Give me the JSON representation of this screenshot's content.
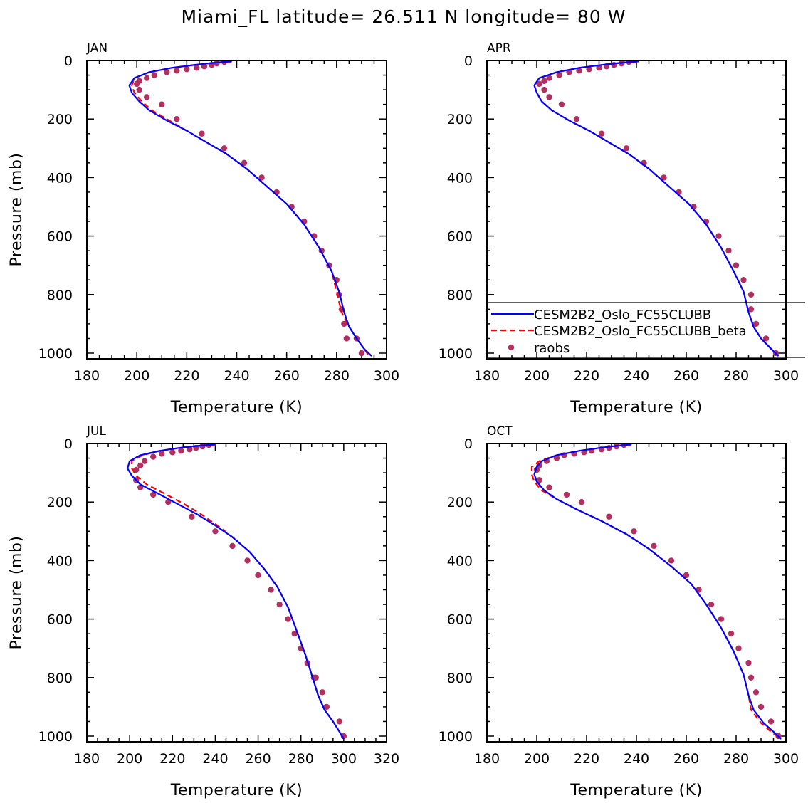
{
  "figure_title": "Miami_FL  latitude= 26.511 N longitude= 80 W",
  "colors": {
    "model": "#0000ff",
    "model_beta": "#ff0000",
    "raobs": "#b03060",
    "axis": "#000000"
  },
  "legend": {
    "entries": [
      {
        "label": "CESM2B2_Oslo_FC55CLUBB",
        "style": "solid",
        "color": "#0000ff"
      },
      {
        "label": "CESM2B2_Oslo_FC55CLUBB_beta",
        "style": "dashed",
        "color": "#ff0000"
      },
      {
        "label": "raobs",
        "style": "dot",
        "color": "#b03060"
      }
    ]
  },
  "chart_data": [
    {
      "type": "line",
      "panel": "JAN",
      "xlabel": "Temperature (K)",
      "ylabel": "Pressure (mb)",
      "xlim": [
        180,
        300
      ],
      "xticks": [
        180,
        200,
        220,
        240,
        260,
        280,
        300
      ],
      "ylim": [
        0,
        1000
      ],
      "yticks": [
        0,
        200,
        400,
        600,
        800,
        1000
      ],
      "yreversed": true,
      "series": [
        {
          "name": "CESM2B2_Oslo_FC55CLUBB",
          "style": "solid",
          "x": [
            238,
            232,
            224,
            214,
            205,
            199,
            197,
            198,
            201,
            205,
            212,
            220,
            228,
            236,
            244,
            252,
            260,
            267,
            273,
            278,
            281,
            283,
            285,
            288,
            291,
            294
          ],
          "y": [
            3,
            7,
            14,
            25,
            40,
            60,
            85,
            110,
            140,
            170,
            205,
            240,
            280,
            320,
            370,
            430,
            490,
            560,
            640,
            720,
            790,
            860,
            910,
            950,
            985,
            1010
          ]
        },
        {
          "name": "CESM2B2_Oslo_FC55CLUBB_beta",
          "style": "dashed",
          "x": [
            238,
            232,
            224,
            214,
            205,
            199,
            198,
            199,
            202,
            206,
            213,
            220,
            228,
            236,
            244,
            252,
            260,
            267,
            273,
            278,
            280,
            282,
            285,
            288,
            291,
            293
          ],
          "y": [
            3,
            7,
            14,
            25,
            40,
            60,
            85,
            110,
            140,
            170,
            205,
            240,
            280,
            320,
            370,
            430,
            490,
            560,
            640,
            720,
            790,
            860,
            910,
            950,
            985,
            1010
          ]
        },
        {
          "name": "raobs",
          "style": "dot",
          "x": [
            237,
            235,
            232,
            230,
            227,
            224,
            220,
            216,
            212,
            207,
            204,
            201,
            200,
            201,
            204,
            210,
            216,
            226,
            235,
            243,
            250,
            256,
            262,
            267,
            271,
            274,
            277,
            280,
            281,
            282,
            283,
            284,
            288,
            290
          ],
          "y": [
            0,
            5,
            10,
            15,
            20,
            25,
            30,
            35,
            40,
            50,
            60,
            70,
            80,
            100,
            125,
            150,
            200,
            250,
            300,
            350,
            400,
            450,
            500,
            550,
            600,
            650,
            700,
            750,
            800,
            850,
            900,
            950,
            950,
            1000
          ]
        }
      ]
    },
    {
      "type": "line",
      "panel": "APR",
      "xlabel": "Temperature (K)",
      "ylabel": "",
      "xlim": [
        180,
        300
      ],
      "xticks": [
        180,
        200,
        220,
        240,
        260,
        280,
        300
      ],
      "ylim": [
        0,
        1000
      ],
      "yticks": [
        0,
        200,
        400,
        600,
        800,
        1000
      ],
      "yreversed": true,
      "series": [
        {
          "name": "CESM2B2_Oslo_FC55CLUBB",
          "style": "solid",
          "x": [
            241,
            235,
            227,
            217,
            208,
            201,
            199,
            200,
            202,
            206,
            213,
            221,
            229,
            237,
            245,
            253,
            261,
            268,
            274,
            279,
            283,
            285,
            287,
            290,
            294,
            297
          ],
          "y": [
            3,
            7,
            14,
            25,
            40,
            60,
            85,
            110,
            140,
            170,
            205,
            240,
            280,
            320,
            370,
            430,
            490,
            560,
            640,
            720,
            790,
            860,
            910,
            950,
            985,
            1010
          ]
        },
        {
          "name": "CESM2B2_Oslo_FC55CLUBB_beta",
          "style": "dashed",
          "x": [
            241,
            235,
            227,
            217,
            208,
            201,
            199,
            200,
            202,
            206,
            213,
            221,
            229,
            237,
            245,
            253,
            261,
            268,
            274,
            279,
            283,
            285,
            287,
            290,
            294,
            297
          ],
          "y": [
            3,
            7,
            14,
            25,
            40,
            60,
            85,
            110,
            140,
            170,
            205,
            240,
            280,
            320,
            370,
            430,
            490,
            560,
            640,
            720,
            790,
            860,
            910,
            950,
            985,
            1010
          ]
        },
        {
          "name": "raobs",
          "style": "dot",
          "x": [
            239,
            237,
            234,
            231,
            228,
            225,
            221,
            217,
            213,
            209,
            205,
            203,
            201,
            203,
            205,
            210,
            216,
            226,
            236,
            243,
            251,
            257,
            263,
            268,
            273,
            277,
            280,
            283,
            286,
            286,
            288,
            292,
            296
          ],
          "y": [
            0,
            5,
            10,
            15,
            20,
            25,
            30,
            35,
            40,
            50,
            60,
            70,
            80,
            100,
            125,
            150,
            200,
            250,
            300,
            350,
            400,
            450,
            500,
            550,
            600,
            650,
            700,
            750,
            800,
            850,
            900,
            950,
            1000
          ]
        }
      ]
    },
    {
      "type": "line",
      "panel": "JUL",
      "xlabel": "Temperature (K)",
      "ylabel": "Pressure (mb)",
      "xlim": [
        180,
        320
      ],
      "xticks": [
        180,
        200,
        220,
        240,
        260,
        280,
        300,
        320
      ],
      "ylim": [
        0,
        1000
      ],
      "yticks": [
        0,
        200,
        400,
        600,
        800,
        1000
      ],
      "yreversed": true,
      "series": [
        {
          "name": "CESM2B2_Oslo_FC55CLUBB",
          "style": "solid",
          "x": [
            240,
            233,
            224,
            214,
            205,
            200,
            199,
            201,
            205,
            213,
            222,
            231,
            240,
            248,
            256,
            263,
            269,
            274,
            278,
            282,
            285,
            288,
            291,
            295,
            298,
            300
          ],
          "y": [
            3,
            7,
            14,
            25,
            40,
            60,
            85,
            110,
            140,
            170,
            205,
            240,
            280,
            320,
            370,
            430,
            490,
            560,
            640,
            720,
            790,
            860,
            910,
            950,
            985,
            1010
          ]
        },
        {
          "name": "CESM2B2_Oslo_FC55CLUBB_beta",
          "style": "dashed",
          "x": [
            240,
            233,
            224,
            214,
            206,
            201,
            201,
            203,
            208,
            216,
            225,
            233,
            241,
            248,
            256,
            263,
            269,
            274,
            278,
            282,
            285,
            288,
            291,
            295,
            298,
            300
          ],
          "y": [
            3,
            7,
            14,
            25,
            40,
            60,
            85,
            110,
            140,
            170,
            205,
            240,
            280,
            320,
            370,
            430,
            490,
            560,
            640,
            720,
            790,
            860,
            910,
            950,
            985,
            1010
          ]
        },
        {
          "name": "raobs",
          "style": "dot",
          "x": [
            239,
            237,
            234,
            231,
            228,
            224,
            220,
            215,
            211,
            207,
            205,
            203,
            203,
            205,
            211,
            218,
            229,
            240,
            248,
            255,
            260,
            266,
            270,
            274,
            277,
            280,
            283,
            286,
            287,
            290,
            292,
            298,
            300
          ],
          "y": [
            0,
            5,
            10,
            15,
            20,
            25,
            30,
            35,
            45,
            60,
            75,
            90,
            125,
            150,
            175,
            200,
            250,
            300,
            350,
            400,
            450,
            500,
            550,
            600,
            650,
            700,
            750,
            800,
            800,
            850,
            900,
            950,
            1000
          ]
        }
      ]
    },
    {
      "type": "line",
      "panel": "OCT",
      "xlabel": "Temperature (K)",
      "ylabel": "",
      "xlim": [
        180,
        300
      ],
      "xticks": [
        180,
        200,
        220,
        240,
        260,
        280,
        300
      ],
      "ylim": [
        0,
        1000
      ],
      "yticks": [
        0,
        200,
        400,
        600,
        800,
        1000
      ],
      "yreversed": true,
      "series": [
        {
          "name": "CESM2B2_Oslo_FC55CLUBB",
          "style": "solid",
          "x": [
            238,
            233,
            226,
            217,
            208,
            202,
            200,
            199,
            200,
            203,
            208,
            216,
            226,
            236,
            245,
            254,
            262,
            268,
            274,
            279,
            283,
            285,
            287,
            291,
            295,
            298
          ],
          "y": [
            3,
            7,
            14,
            25,
            40,
            60,
            80,
            105,
            130,
            160,
            190,
            225,
            265,
            310,
            360,
            420,
            480,
            550,
            630,
            710,
            790,
            860,
            910,
            955,
            985,
            1010
          ]
        },
        {
          "name": "CESM2B2_Oslo_FC55CLUBB_beta",
          "style": "dashed",
          "x": [
            238,
            233,
            226,
            217,
            208,
            201,
            198,
            198,
            199,
            202,
            208,
            216,
            226,
            236,
            245,
            254,
            262,
            268,
            274,
            279,
            283,
            285,
            286,
            290,
            294,
            298
          ],
          "y": [
            3,
            7,
            14,
            25,
            40,
            60,
            80,
            105,
            130,
            160,
            190,
            225,
            265,
            310,
            360,
            420,
            480,
            550,
            630,
            710,
            790,
            860,
            910,
            955,
            985,
            1010
          ]
        },
        {
          "name": "raobs",
          "style": "dot",
          "x": [
            237,
            235,
            232,
            229,
            226,
            222,
            219,
            215,
            211,
            208,
            204,
            201,
            200,
            201,
            205,
            212,
            218,
            229,
            239,
            247,
            254,
            260,
            265,
            270,
            274,
            278,
            281,
            285,
            286,
            288,
            290,
            294,
            297
          ],
          "y": [
            0,
            5,
            10,
            15,
            20,
            25,
            30,
            35,
            40,
            50,
            60,
            75,
            90,
            125,
            150,
            175,
            200,
            250,
            300,
            350,
            400,
            450,
            500,
            550,
            600,
            650,
            700,
            750,
            800,
            850,
            900,
            950,
            1000
          ]
        }
      ]
    }
  ]
}
